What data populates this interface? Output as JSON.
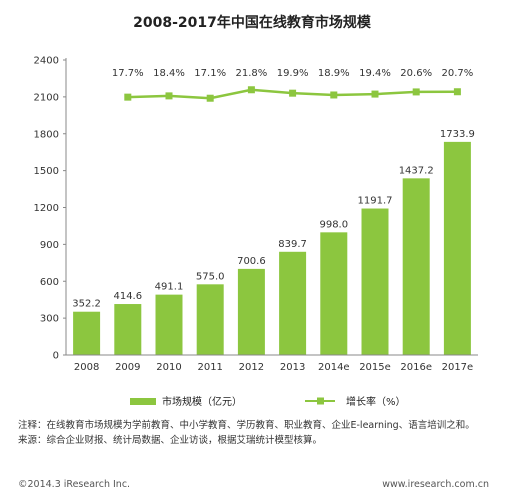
{
  "chart_data": {
    "type": "bar",
    "title": "2008-2017年中国在线教育市场规模",
    "categories": [
      "2008",
      "2009",
      "2010",
      "2011",
      "2012",
      "2013",
      "2014e",
      "2015e",
      "2016e",
      "2017e"
    ],
    "series": [
      {
        "name": "市场规模（亿元）",
        "type": "bar",
        "values": [
          352.2,
          414.6,
          491.1,
          575.0,
          700.6,
          839.7,
          998.0,
          1191.7,
          1437.2,
          1733.9
        ],
        "labels": [
          "352.2",
          "414.6",
          "491.1",
          "575.0",
          "700.6",
          "839.7",
          "998.0",
          "1191.7",
          "1437.2",
          "1733.9"
        ]
      },
      {
        "name": "增长率（%）",
        "type": "line",
        "values": [
          null,
          17.7,
          18.4,
          17.1,
          21.8,
          19.9,
          18.9,
          19.4,
          20.6,
          20.7
        ],
        "labels": [
          "",
          "17.7%",
          "18.4%",
          "17.1%",
          "21.8%",
          "19.9%",
          "18.9%",
          "19.4%",
          "20.6%",
          "20.7%"
        ]
      }
    ],
    "yticks": [
      "0",
      "300",
      "600",
      "900",
      "1200",
      "1500",
      "1800",
      "2100",
      "2400"
    ],
    "ylim": [
      0,
      2400
    ],
    "legend_position": "bottom",
    "grid": false
  },
  "colors": {
    "bar": "#8cc63f",
    "line": "#8cc63f",
    "axis": "#888888"
  },
  "notes": {
    "note": "注释：在线教育市场规模为学前教育、中小学教育、学历教育、职业教育、企业E-learning、语言培训之和。",
    "source": "来源：综合企业财报、统计局数据、企业访谈，根据艾瑞统计模型核算。"
  },
  "footer": {
    "copyright": "©2014.3 iResearch Inc.",
    "website": "www.iresearch.com.cn"
  }
}
